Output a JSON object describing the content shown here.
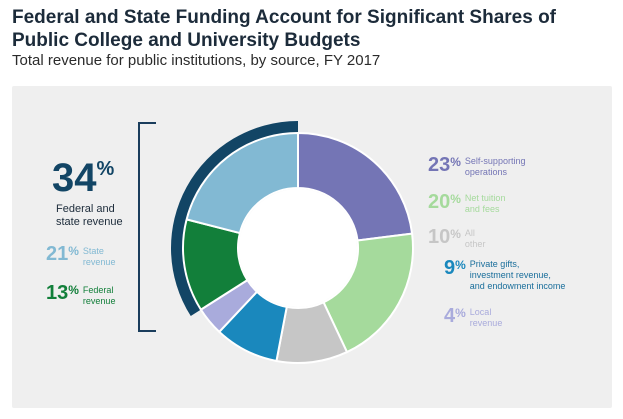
{
  "title": "Federal and State Funding Account for Significant Shares of Public College and University Budgets",
  "subtitle": "Total revenue for public institutions, by source, FY 2017",
  "colors": {
    "self": "#7475b5",
    "tuition": "#a5da9c",
    "other": "#c6c6c6",
    "private": "#1a88bd",
    "local": "#a9abdc",
    "federal": "#127f3a",
    "state": "#82b9d3",
    "combined": "#124565"
  },
  "highlight": {
    "percent": "34",
    "suffix": "%",
    "label_line1": "Federal and",
    "label_line2": "state revenue"
  },
  "left_labels": [
    {
      "percent": "21",
      "suffix": "%",
      "line1": "State",
      "line2": "revenue",
      "color": "#82b9d3"
    },
    {
      "percent": "13",
      "suffix": "%",
      "line1": "Federal",
      "line2": "revenue",
      "color": "#127f3a"
    }
  ],
  "right_labels": [
    {
      "percent": "23",
      "suffix": "%",
      "line1": "Self-supporting",
      "line2": "operations",
      "line3": "",
      "color": "#7475b5"
    },
    {
      "percent": "20",
      "suffix": "%",
      "line1": "Net tuition",
      "line2": "and fees",
      "line3": "",
      "color": "#a5da9c"
    },
    {
      "percent": "10",
      "suffix": "%",
      "line1": "All",
      "line2": "other",
      "line3": "",
      "color": "#c6c6c6"
    },
    {
      "percent": "9",
      "suffix": "%",
      "line1": "Private gifts,",
      "line2": "investment revenue,",
      "line3": "and endowment income",
      "color": "#1a88bd"
    },
    {
      "percent": "4",
      "suffix": "%",
      "line1": "Local",
      "line2": "revenue",
      "line3": "",
      "color": "#a9abdc"
    }
  ],
  "chart_data": {
    "type": "pie",
    "title": "Federal and State Funding Account for Significant Shares of Public College and University Budgets",
    "subtitle": "Total revenue for public institutions, by source, FY 2017",
    "unit": "%",
    "categories": [
      "Self-supporting operations",
      "Net tuition and fees",
      "All other",
      "Private gifts, investment revenue, and endowment income",
      "Local revenue",
      "Federal revenue",
      "State revenue"
    ],
    "values": [
      23,
      20,
      10,
      9,
      4,
      13,
      21
    ],
    "group": {
      "label": "Federal and state revenue",
      "value": 34,
      "members": [
        "Federal revenue",
        "State revenue"
      ]
    }
  }
}
